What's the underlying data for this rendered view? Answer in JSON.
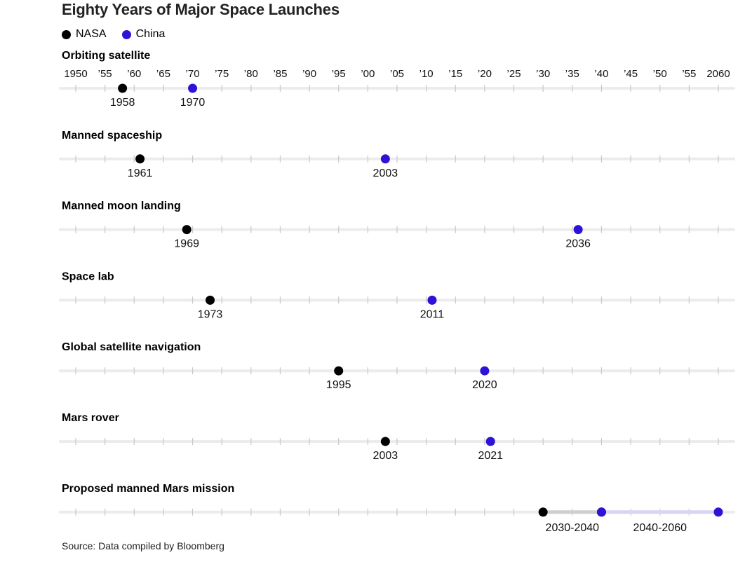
{
  "title": "Eighty Years of Major Space Launches",
  "legend": [
    {
      "name": "NASA",
      "color": "#000000"
    },
    {
      "name": "China",
      "color": "#2d12d8"
    }
  ],
  "source": "Source: Data compiled by Bloomberg",
  "chart_data": {
    "type": "timeline",
    "xlim": [
      1950,
      2060
    ],
    "tick_labels": [
      "1950",
      "’55",
      "’60",
      "’65",
      "’70",
      "’75",
      "’80",
      "’85",
      "’90",
      "’95",
      "’00",
      "’05",
      "’10",
      "’15",
      "’20",
      "’25",
      "’30",
      "’35",
      "’40",
      "’45",
      "’50",
      "’55",
      "2060"
    ],
    "series": [
      {
        "name": "NASA",
        "color": "#000000"
      },
      {
        "name": "China",
        "color": "#2d12d8"
      }
    ],
    "rows": [
      {
        "category": "Orbiting satellite",
        "points": [
          {
            "series": "NASA",
            "year": 1958,
            "label": "1958"
          },
          {
            "series": "China",
            "year": 1970,
            "label": "1970"
          }
        ]
      },
      {
        "category": "Manned spaceship",
        "points": [
          {
            "series": "NASA",
            "year": 1961,
            "label": "1961"
          },
          {
            "series": "China",
            "year": 2003,
            "label": "2003"
          }
        ]
      },
      {
        "category": "Manned moon landing",
        "points": [
          {
            "series": "NASA",
            "year": 1969,
            "label": "1969"
          },
          {
            "series": "China",
            "year": 2036,
            "label": "2036"
          }
        ]
      },
      {
        "category": "Space lab",
        "points": [
          {
            "series": "NASA",
            "year": 1973,
            "label": "1973"
          },
          {
            "series": "China",
            "year": 2011,
            "label": "2011"
          }
        ]
      },
      {
        "category": "Global satellite navigation",
        "points": [
          {
            "series": "NASA",
            "year": 1995,
            "label": "1995"
          },
          {
            "series": "China",
            "year": 2020,
            "label": "2020"
          }
        ]
      },
      {
        "category": "Mars rover",
        "points": [
          {
            "series": "NASA",
            "year": 2003,
            "label": "2003"
          },
          {
            "series": "China",
            "year": 2021,
            "label": "2021"
          }
        ]
      },
      {
        "category": "Proposed manned Mars mission",
        "ranges": [
          {
            "series": "NASA",
            "start": 2030,
            "end": 2040,
            "label": "2030-2040"
          },
          {
            "series": "China",
            "start": 2040,
            "end": 2060,
            "label": "2040-2060"
          }
        ]
      }
    ]
  }
}
